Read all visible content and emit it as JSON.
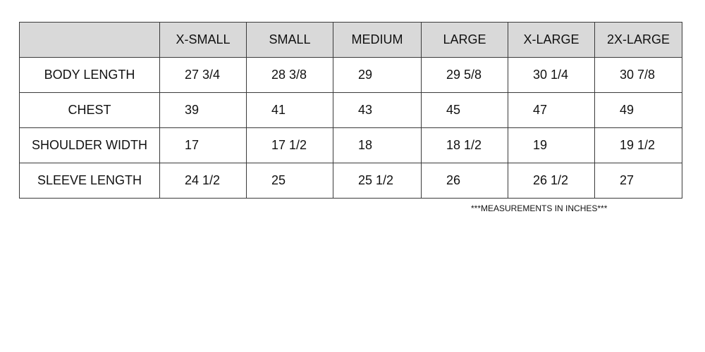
{
  "table": {
    "headers": [
      "",
      "X-SMALL",
      "SMALL",
      "MEDIUM",
      "LARGE",
      "X-LARGE",
      "2X-LARGE"
    ],
    "rows": [
      {
        "label": "BODY LENGTH",
        "values": [
          "27 3/4",
          "28 3/8",
          "29",
          "29 5/8",
          "30 1/4",
          "30 7/8"
        ]
      },
      {
        "label": "CHEST",
        "values": [
          "39",
          "41",
          "43",
          "45",
          "47",
          "49"
        ]
      },
      {
        "label": "SHOULDER WIDTH",
        "values": [
          "17",
          "17 1/2",
          "18",
          "18 1/2",
          "19",
          "19 1/2"
        ]
      },
      {
        "label": "SLEEVE LENGTH",
        "values": [
          "24 1/2",
          "25",
          "25 1/2",
          "26",
          "26 1/2",
          "27"
        ]
      }
    ]
  },
  "footnote": "***MEASUREMENTS IN INCHES***",
  "colors": {
    "header_bg": "#d9d9d9",
    "border": "#3a3a3a"
  }
}
